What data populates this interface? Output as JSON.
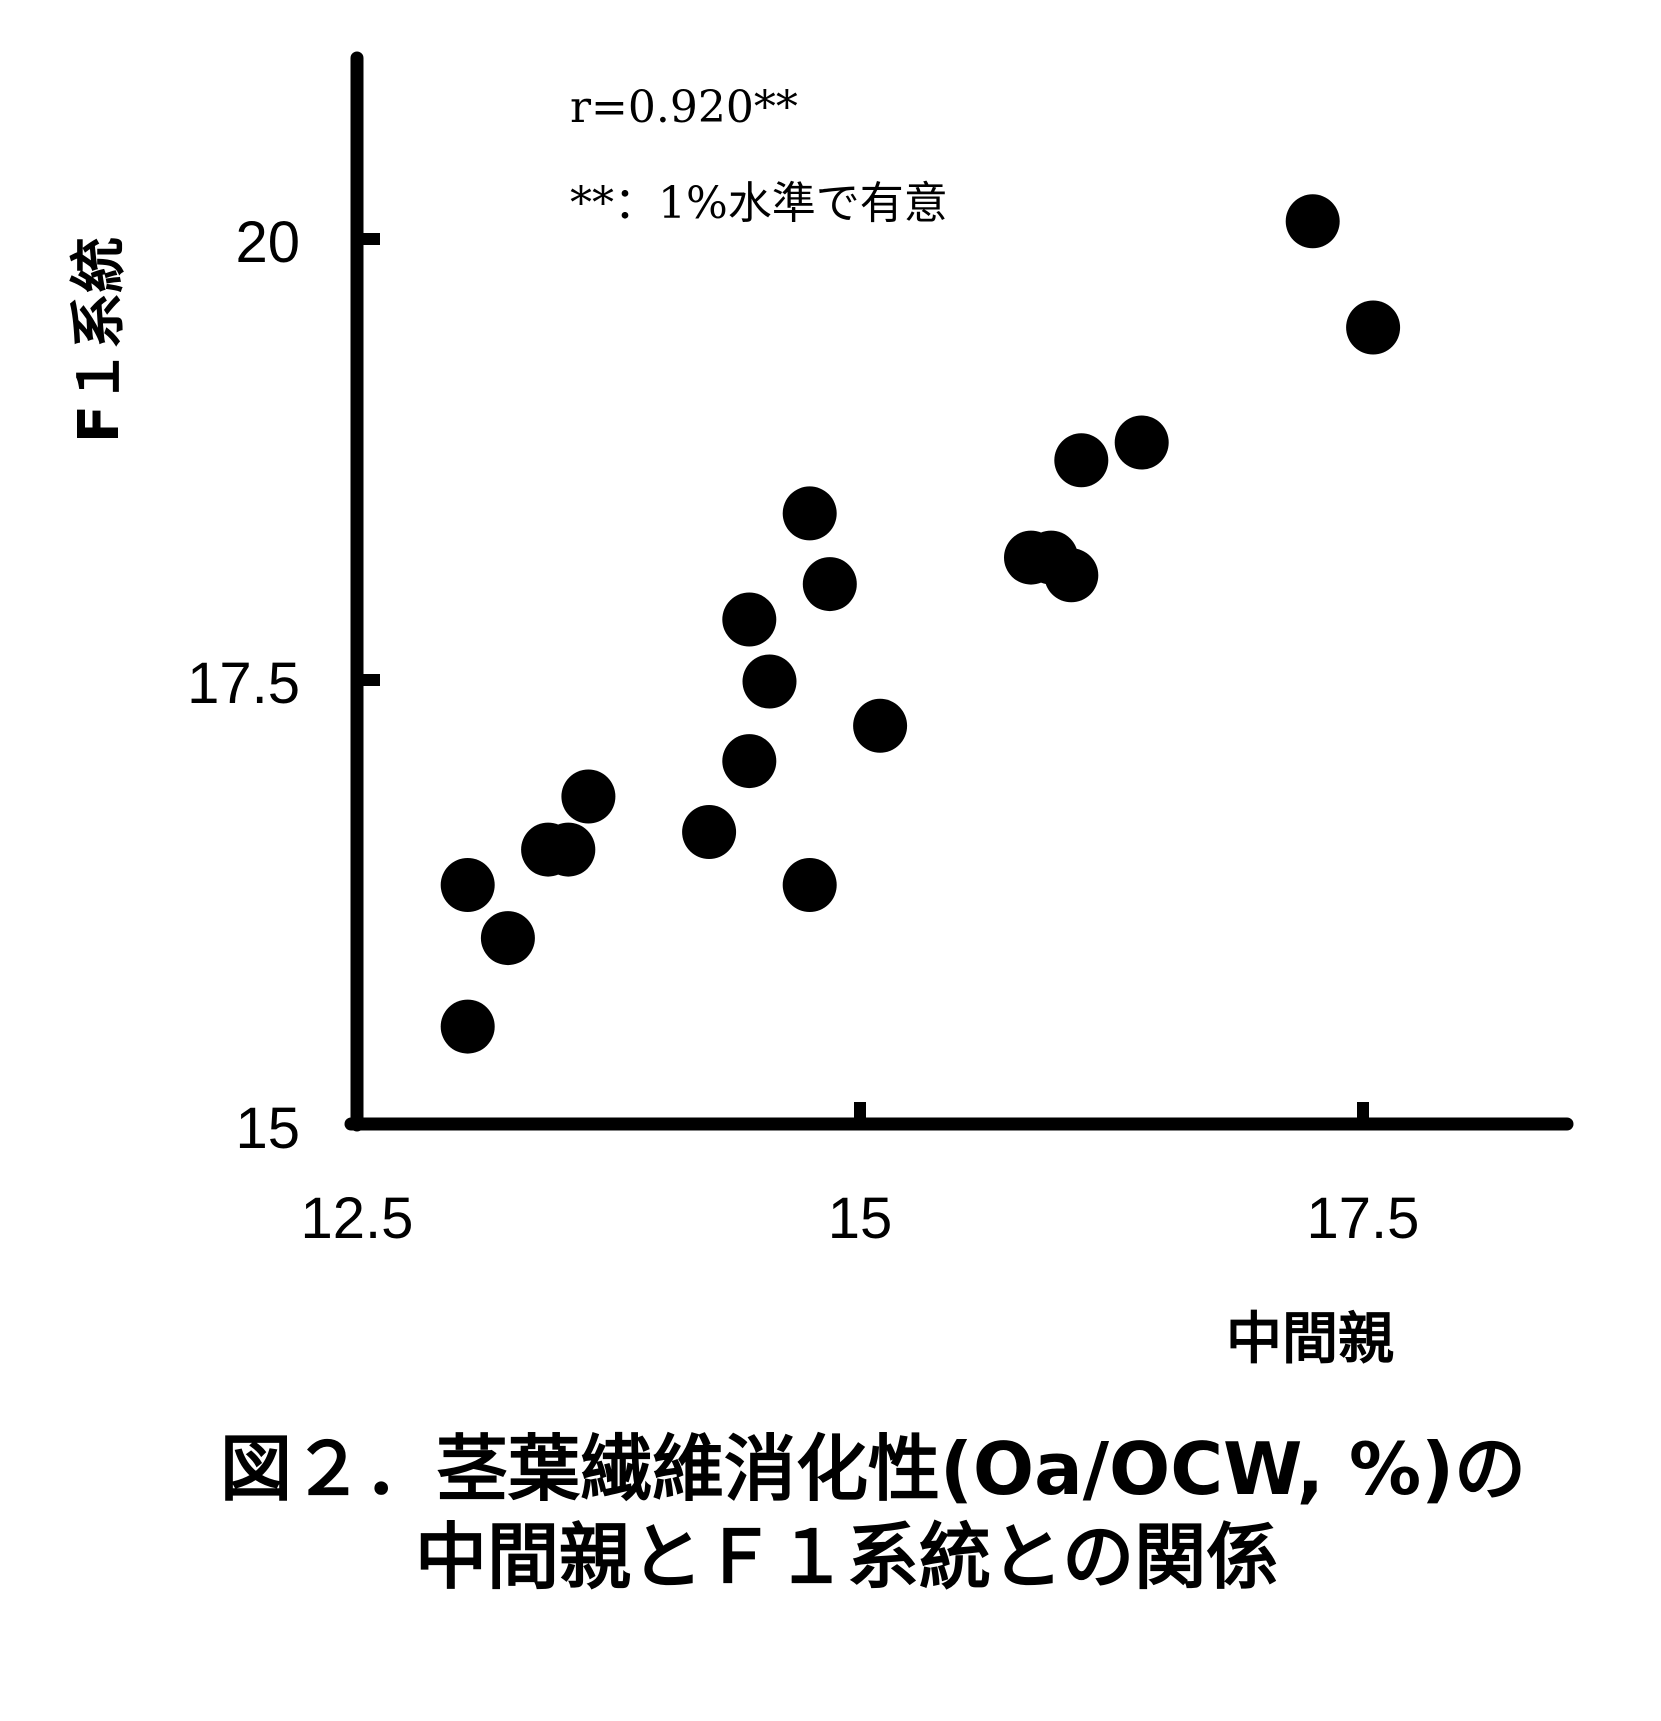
{
  "chart_data": {
    "type": "scatter",
    "xlabel": "中間親",
    "ylabel": "F１系統",
    "xlim": [
      12.5,
      18.0
    ],
    "ylim": [
      15,
      20.5
    ],
    "x_ticks": [
      "12.5",
      "15",
      "17.5"
    ],
    "y_ticks": [
      "15",
      "17.5",
      "20"
    ],
    "annotations": [
      "r=0.920**",
      "**：1%水準で有意"
    ],
    "marker_color": "#000000",
    "grid": false,
    "series": [
      {
        "points": [
          {
            "x": 13.05,
            "y": 16.35
          },
          {
            "x": 13.25,
            "y": 16.05
          },
          {
            "x": 13.05,
            "y": 15.55
          },
          {
            "x": 13.45,
            "y": 16.55
          },
          {
            "x": 13.55,
            "y": 16.55
          },
          {
            "x": 13.65,
            "y": 16.85
          },
          {
            "x": 14.25,
            "y": 16.65
          },
          {
            "x": 14.45,
            "y": 17.05
          },
          {
            "x": 14.45,
            "y": 17.85
          },
          {
            "x": 14.55,
            "y": 17.5
          },
          {
            "x": 14.75,
            "y": 18.45
          },
          {
            "x": 14.75,
            "y": 16.35
          },
          {
            "x": 14.85,
            "y": 18.05
          },
          {
            "x": 15.1,
            "y": 17.25
          },
          {
            "x": 15.85,
            "y": 18.2
          },
          {
            "x": 15.95,
            "y": 18.2
          },
          {
            "x": 16.05,
            "y": 18.1
          },
          {
            "x": 16.1,
            "y": 18.75
          },
          {
            "x": 16.4,
            "y": 18.85
          },
          {
            "x": 17.25,
            "y": 20.1
          },
          {
            "x": 17.55,
            "y": 19.5
          }
        ]
      }
    ]
  },
  "caption": {
    "line1": "図２．茎葉繊維消化性(Oa/OCW, %)の",
    "line2": "中間親とＦ１系統との関係"
  }
}
